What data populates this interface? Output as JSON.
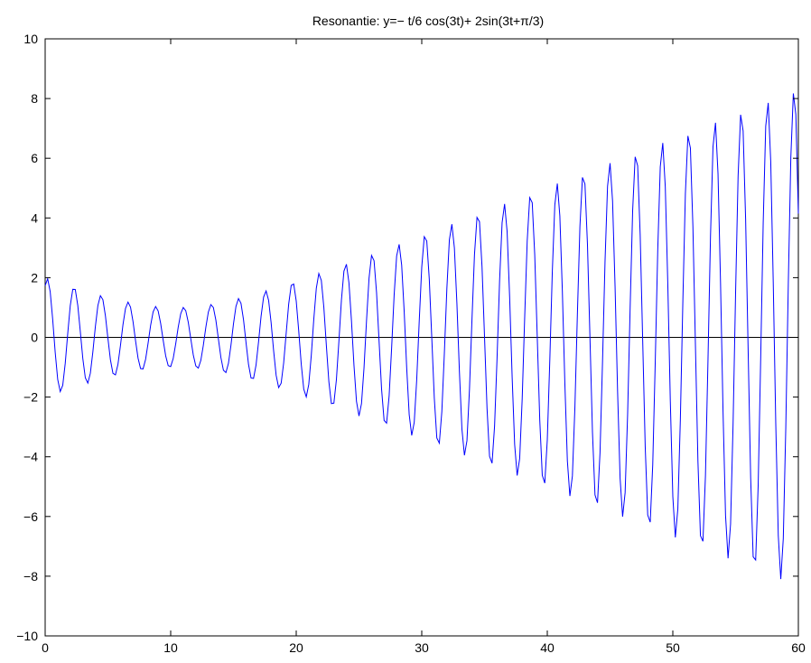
{
  "chart_data": {
    "type": "line",
    "title": "Resonantie: y=− t/6 cos(3t)+ 2sin(3t+π/3)",
    "xlabel": "",
    "ylabel": "",
    "xlim": [
      0,
      60
    ],
    "ylim": [
      -10,
      10
    ],
    "x_ticks": [
      0,
      10,
      20,
      30,
      40,
      50,
      60
    ],
    "y_ticks": [
      -10,
      -8,
      -6,
      -4,
      -2,
      0,
      2,
      4,
      6,
      8,
      10
    ],
    "x_tick_labels": [
      "0",
      "10",
      "20",
      "30",
      "40",
      "50",
      "60"
    ],
    "y_tick_labels": [
      "−10",
      "−8",
      "−6",
      "−4",
      "−2",
      "0",
      "2",
      "4",
      "6",
      "8",
      "10"
    ],
    "grid": false,
    "legend": "none",
    "reference_lines": [
      {
        "y": 0,
        "color": "#000000"
      }
    ],
    "series": [
      {
        "color": "#0000ff",
        "function": "y = -(t/6)*cos(3t) + 2*sin(3t + pi/3)",
        "t_range": [
          0,
          60
        ],
        "sample_step": 0.2
      }
    ]
  }
}
